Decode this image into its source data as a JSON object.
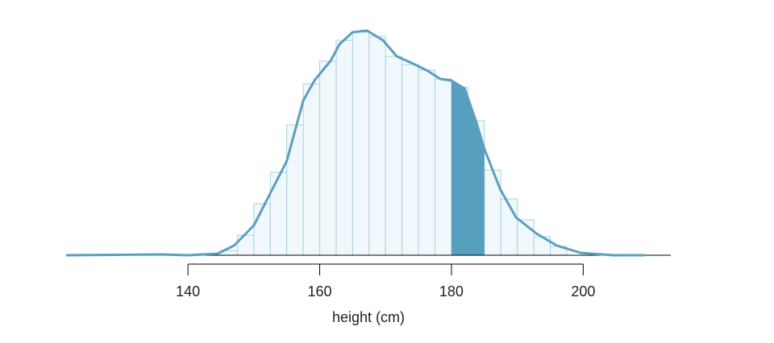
{
  "chart_data": {
    "type": "histogram",
    "xlabel": "height (cm)",
    "bins": [
      145,
      147.5,
      150,
      152.5,
      155,
      157.5,
      160,
      162.5,
      165,
      167.5,
      170,
      172.5,
      175,
      177.5,
      180,
      182.5,
      185,
      187.5,
      190,
      192.5,
      195,
      197.5
    ],
    "values": [
      6,
      25,
      64,
      103,
      162,
      213,
      241,
      267,
      277,
      272,
      247,
      237,
      230,
      219,
      209,
      167,
      106,
      70,
      44,
      23,
      11
    ],
    "density": {
      "x": [
        121.5,
        136,
        140,
        144.5,
        147,
        150,
        152.5,
        155,
        157.5,
        159.2,
        161.7,
        163,
        165,
        167.2,
        169.6,
        171.7,
        173.9,
        176.4,
        178.3,
        180,
        182,
        183.7,
        185,
        187.4,
        189.8,
        192.9,
        196,
        199.6,
        204.5,
        209.4
      ],
      "values": [
        0,
        1,
        0,
        2,
        12,
        37,
        77,
        117,
        192,
        217,
        242,
        262,
        277,
        279,
        267,
        247,
        239,
        229,
        219,
        217,
        207,
        167,
        132,
        82,
        47,
        27,
        12,
        3,
        0,
        0
      ]
    },
    "highlight": [
      180,
      185
    ],
    "bar_color": "#f1f8fb",
    "bar_edge": "#a9d0e1",
    "line_color": "#5a9fc0",
    "highlight_color": "#569fbf",
    "xlim": [
      121.5,
      213.3
    ],
    "xticks": [
      140,
      160,
      180,
      200
    ],
    "ylim": [
      0,
      290
    ]
  }
}
